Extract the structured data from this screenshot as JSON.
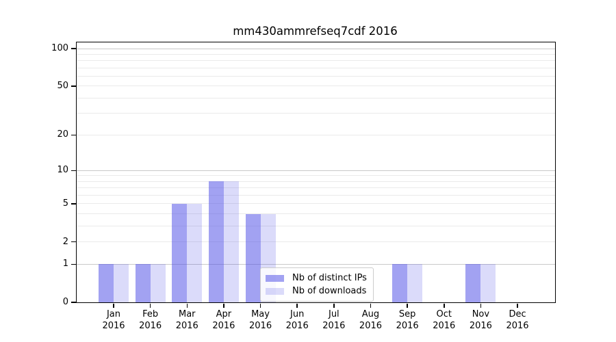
{
  "chart_data": {
    "type": "bar",
    "title": "mm430ammrefseq7cdf 2016",
    "categories": [
      "Jan",
      "Feb",
      "Mar",
      "Apr",
      "May",
      "Jun",
      "Jul",
      "Aug",
      "Sep",
      "Oct",
      "Nov",
      "Dec"
    ],
    "x_sublabel": "2016",
    "series": [
      {
        "name": "Nb of distinct IPs",
        "color": "rgba(77,77,231,0.52)",
        "values": [
          1,
          1,
          5,
          8,
          4,
          0,
          0,
          0,
          1,
          0,
          1,
          0
        ]
      },
      {
        "name": "Nb of downloads",
        "color": "rgba(77,77,231,0.20)",
        "values": [
          1,
          1,
          5,
          8,
          4,
          0,
          0,
          0,
          1,
          0,
          1,
          0
        ]
      }
    ],
    "y_scale": "log1p",
    "ylim": [
      0,
      112
    ],
    "y_tick_values": [
      0,
      1,
      2,
      5,
      10,
      20,
      50,
      100
    ],
    "y_gridlines_major": [
      1,
      10,
      100
    ],
    "y_gridlines_light": [
      2,
      3,
      4,
      5,
      6,
      7,
      8,
      9,
      20,
      30,
      40,
      50,
      60,
      70,
      80,
      90
    ],
    "colors": {
      "grid_major": "#c9c9c9",
      "grid_light": "#eaeaea",
      "axis": "#000000",
      "background": "#ffffff"
    },
    "legend_position": "lower center",
    "grid": true
  }
}
